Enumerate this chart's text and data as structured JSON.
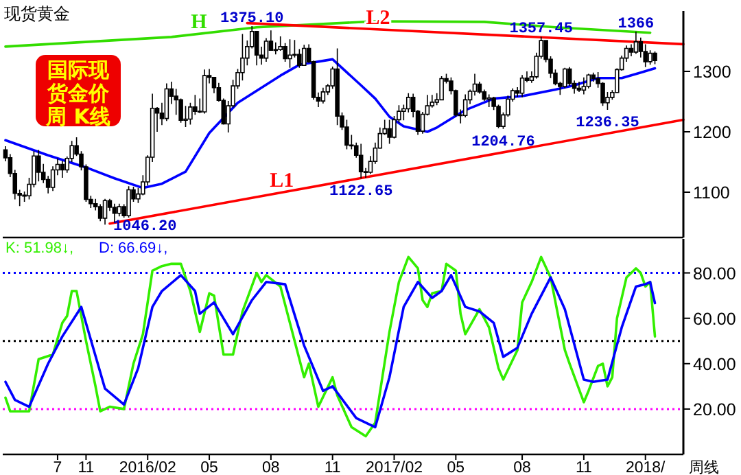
{
  "chart_data": [
    {
      "type": "candlestick",
      "title": "现货黄金",
      "x": [
        "2015-07-06",
        "2015-07-13",
        "2015-07-20",
        "2015-07-27",
        "2015-08-03",
        "2015-08-10",
        "2015-08-17",
        "2015-08-24",
        "2015-08-31",
        "2015-09-07",
        "2015-09-14",
        "2015-09-21",
        "2015-09-28",
        "2015-10-05",
        "2015-10-12",
        "2015-10-19",
        "2015-10-26",
        "2015-11-02",
        "2015-11-09",
        "2015-11-16",
        "2015-11-23",
        "2015-11-30",
        "2015-12-07",
        "2015-12-14",
        "2015-12-21",
        "2015-12-28",
        "2016-01-04",
        "2016-01-11",
        "2016-01-18",
        "2016-01-25",
        "2016-02-01",
        "2016-02-08",
        "2016-02-15",
        "2016-02-22",
        "2016-02-29",
        "2016-03-07",
        "2016-03-14",
        "2016-03-21",
        "2016-03-28",
        "2016-04-04",
        "2016-04-11",
        "2016-04-18",
        "2016-04-25",
        "2016-05-02",
        "2016-05-09",
        "2016-05-16",
        "2016-05-23",
        "2016-05-30",
        "2016-06-06",
        "2016-06-13",
        "2016-06-20",
        "2016-06-27",
        "2016-07-04",
        "2016-07-11",
        "2016-07-18",
        "2016-07-25",
        "2016-08-01",
        "2016-08-08",
        "2016-08-15",
        "2016-08-22",
        "2016-08-29",
        "2016-09-05",
        "2016-09-12",
        "2016-09-19",
        "2016-09-26",
        "2016-10-03",
        "2016-10-10",
        "2016-10-17",
        "2016-10-24",
        "2016-10-31",
        "2016-11-07",
        "2016-11-14",
        "2016-11-21",
        "2016-11-28",
        "2016-12-05",
        "2016-12-12",
        "2016-12-19",
        "2016-12-26",
        "2017-01-02",
        "2017-01-09",
        "2017-01-16",
        "2017-01-23",
        "2017-01-30",
        "2017-02-06",
        "2017-02-13",
        "2017-02-20",
        "2017-02-27",
        "2017-03-06",
        "2017-03-13",
        "2017-03-20",
        "2017-03-27",
        "2017-04-03",
        "2017-04-10",
        "2017-04-17",
        "2017-04-24",
        "2017-05-01",
        "2017-05-08",
        "2017-05-15",
        "2017-05-22",
        "2017-05-29",
        "2017-06-05",
        "2017-06-12",
        "2017-06-19",
        "2017-06-26",
        "2017-07-03",
        "2017-07-10",
        "2017-07-17",
        "2017-07-24",
        "2017-07-31",
        "2017-08-07",
        "2017-08-14",
        "2017-08-21",
        "2017-08-28",
        "2017-09-04",
        "2017-09-11",
        "2017-09-18",
        "2017-09-25",
        "2017-10-02",
        "2017-10-09",
        "2017-10-16",
        "2017-10-23",
        "2017-10-30",
        "2017-11-06",
        "2017-11-13",
        "2017-11-20",
        "2017-11-27",
        "2017-12-04",
        "2017-12-11",
        "2017-12-18",
        "2017-12-25",
        "2018-01-01",
        "2018-01-08",
        "2018-01-15",
        "2018-01-22",
        "2018-01-29",
        "2018-02-05",
        "2018-02-12",
        "2018-02-19"
      ],
      "ohlc": [
        [
          1170,
          1176,
          1151,
          1157
        ],
        [
          1157,
          1163,
          1125,
          1131
        ],
        [
          1131,
          1137,
          1088,
          1098
        ],
        [
          1098,
          1104,
          1077,
          1095
        ],
        [
          1095,
          1101,
          1084,
          1094
        ],
        [
          1094,
          1124,
          1088,
          1113
        ],
        [
          1113,
          1168,
          1108,
          1160
        ],
        [
          1160,
          1170,
          1118,
          1133
        ],
        [
          1133,
          1147,
          1115,
          1121
        ],
        [
          1121,
          1127,
          1098,
          1108
        ],
        [
          1108,
          1143,
          1102,
          1137
        ],
        [
          1137,
          1156,
          1128,
          1146
        ],
        [
          1146,
          1152,
          1124,
          1137
        ],
        [
          1137,
          1159,
          1132,
          1156
        ],
        [
          1156,
          1185,
          1150,
          1177
        ],
        [
          1177,
          1191,
          1160,
          1163
        ],
        [
          1163,
          1168,
          1136,
          1142
        ],
        [
          1142,
          1146,
          1084,
          1088
        ],
        [
          1088,
          1094,
          1074,
          1081
        ],
        [
          1081,
          1089,
          1070,
          1076
        ],
        [
          1076,
          1080,
          1052,
          1057
        ],
        [
          1057,
          1089,
          1046.2,
          1086
        ],
        [
          1086,
          1089,
          1069,
          1075
        ],
        [
          1075,
          1081,
          1049,
          1065
        ],
        [
          1065,
          1081,
          1060,
          1076
        ],
        [
          1076,
          1080,
          1058,
          1061
        ],
        [
          1061,
          1110,
          1058,
          1104
        ],
        [
          1104,
          1109,
          1084,
          1089
        ],
        [
          1089,
          1107,
          1082,
          1097
        ],
        [
          1097,
          1128,
          1095,
          1117
        ],
        [
          1117,
          1161,
          1111,
          1158
        ],
        [
          1158,
          1263,
          1150,
          1239
        ],
        [
          1239,
          1241,
          1200,
          1231
        ],
        [
          1231,
          1248,
          1211,
          1222
        ],
        [
          1222,
          1280,
          1218,
          1271
        ],
        [
          1271,
          1283,
          1246,
          1259
        ],
        [
          1259,
          1271,
          1228,
          1253
        ],
        [
          1253,
          1255,
          1215,
          1219
        ],
        [
          1219,
          1243,
          1208,
          1221
        ],
        [
          1221,
          1248,
          1212,
          1241
        ],
        [
          1241,
          1261,
          1228,
          1234
        ],
        [
          1234,
          1255,
          1231,
          1233
        ],
        [
          1233,
          1303,
          1230,
          1293
        ],
        [
          1293,
          1304,
          1280,
          1290
        ],
        [
          1290,
          1290,
          1264,
          1273
        ],
        [
          1273,
          1281,
          1250,
          1252
        ],
        [
          1252,
          1255,
          1212,
          1213
        ],
        [
          1213,
          1251,
          1199,
          1243
        ],
        [
          1243,
          1286,
          1240,
          1276
        ],
        [
          1276,
          1304,
          1271,
          1298
        ],
        [
          1298,
          1362,
          1285,
          1322
        ],
        [
          1322,
          1351,
          1310,
          1341
        ],
        [
          1341,
          1375.1,
          1338,
          1366
        ],
        [
          1366,
          1367,
          1310,
          1327
        ],
        [
          1327,
          1341,
          1311,
          1322
        ],
        [
          1322,
          1355,
          1316,
          1350
        ],
        [
          1350,
          1368,
          1334,
          1335
        ],
        [
          1335,
          1348,
          1328,
          1336
        ],
        [
          1336,
          1358,
          1334,
          1341
        ],
        [
          1341,
          1347,
          1316,
          1321
        ],
        [
          1321,
          1353,
          1306,
          1327
        ],
        [
          1327,
          1352,
          1323,
          1328
        ],
        [
          1328,
          1337,
          1306,
          1310
        ],
        [
          1310,
          1344,
          1309,
          1338
        ],
        [
          1338,
          1345,
          1314,
          1316
        ],
        [
          1316,
          1318,
          1253,
          1257
        ],
        [
          1257,
          1265,
          1241,
          1251
        ],
        [
          1251,
          1273,
          1247,
          1266
        ],
        [
          1266,
          1279,
          1261,
          1276
        ],
        [
          1276,
          1308,
          1271,
          1304
        ],
        [
          1304,
          1338,
          1211,
          1226
        ],
        [
          1226,
          1232,
          1203,
          1208
        ],
        [
          1208,
          1220,
          1171,
          1178
        ],
        [
          1178,
          1195,
          1171,
          1177
        ],
        [
          1177,
          1182,
          1157,
          1161
        ],
        [
          1161,
          1180,
          1122.65,
          1134
        ],
        [
          1134,
          1140,
          1124,
          1133
        ],
        [
          1133,
          1160,
          1130,
          1151
        ],
        [
          1151,
          1182,
          1147,
          1173
        ],
        [
          1173,
          1207,
          1172,
          1197
        ],
        [
          1197,
          1220,
          1195,
          1205
        ],
        [
          1205,
          1220,
          1180,
          1191
        ],
        [
          1191,
          1226,
          1189,
          1220
        ],
        [
          1220,
          1244,
          1215,
          1234
        ],
        [
          1234,
          1245,
          1219,
          1238
        ],
        [
          1238,
          1264,
          1232,
          1257
        ],
        [
          1257,
          1263,
          1224,
          1234
        ],
        [
          1234,
          1236,
          1195,
          1201
        ],
        [
          1201,
          1233,
          1197,
          1229
        ],
        [
          1229,
          1261,
          1227,
          1243
        ],
        [
          1243,
          1261,
          1240,
          1249
        ],
        [
          1249,
          1264,
          1244,
          1253
        ],
        [
          1253,
          1292,
          1252,
          1288
        ],
        [
          1288,
          1296,
          1280,
          1284
        ],
        [
          1284,
          1290,
          1262,
          1268
        ],
        [
          1268,
          1270,
          1225,
          1228
        ],
        [
          1228,
          1237,
          1214,
          1227
        ],
        [
          1227,
          1262,
          1224,
          1253
        ],
        [
          1253,
          1270,
          1246,
          1267
        ],
        [
          1267,
          1296,
          1260,
          1279
        ],
        [
          1279,
          1283,
          1263,
          1266
        ],
        [
          1266,
          1270,
          1251,
          1254
        ],
        [
          1254,
          1262,
          1241,
          1256
        ],
        [
          1256,
          1258,
          1236,
          1242
        ],
        [
          1242,
          1245,
          1206,
          1209
        ],
        [
          1209,
          1232,
          1204.76,
          1228
        ],
        [
          1228,
          1260,
          1225,
          1254
        ],
        [
          1254,
          1272,
          1250,
          1268
        ],
        [
          1268,
          1274,
          1258,
          1264
        ],
        [
          1264,
          1294,
          1257,
          1289
        ],
        [
          1289,
          1300,
          1282,
          1285
        ],
        [
          1285,
          1300,
          1281,
          1291
        ],
        [
          1291,
          1331,
          1288,
          1325
        ],
        [
          1325,
          1357.45,
          1321,
          1351
        ],
        [
          1351,
          1352,
          1315,
          1320
        ],
        [
          1320,
          1325,
          1289,
          1297
        ],
        [
          1297,
          1303,
          1277,
          1280
        ],
        [
          1280,
          1283,
          1261,
          1275
        ],
        [
          1275,
          1306,
          1272,
          1304
        ],
        [
          1304,
          1307,
          1276,
          1280
        ],
        [
          1280,
          1285,
          1263,
          1272
        ],
        [
          1272,
          1283,
          1266,
          1269
        ],
        [
          1269,
          1290,
          1262,
          1275
        ],
        [
          1275,
          1296,
          1272,
          1294
        ],
        [
          1294,
          1298,
          1283,
          1288
        ],
        [
          1288,
          1299,
          1273,
          1280
        ],
        [
          1280,
          1282,
          1243,
          1248
        ],
        [
          1248,
          1266,
          1236.35,
          1257
        ],
        [
          1257,
          1269,
          1253,
          1265
        ],
        [
          1265,
          1305,
          1265,
          1303
        ],
        [
          1303,
          1326,
          1301,
          1322
        ],
        [
          1322,
          1343,
          1316,
          1338
        ],
        [
          1338,
          1345,
          1325,
          1332
        ],
        [
          1332,
          1366,
          1329,
          1349
        ],
        [
          1349,
          1356,
          1323,
          1333
        ],
        [
          1333,
          1345,
          1307,
          1316
        ],
        [
          1316,
          1335,
          1311,
          1330
        ],
        [
          1330,
          1333,
          1312,
          1318
        ]
      ],
      "color": "#000000",
      "xlim": [
        "2015-07-02",
        "2018-04-02"
      ],
      "ylim": [
        1025,
        1400
      ],
      "yticks": [
        1100,
        1200,
        1300
      ],
      "tick_labels": "y",
      "series": [
        {
          "type": "line",
          "color": "#0000ff",
          "x": [
            "2015-07-06",
            "2015-09-07",
            "2015-11-02",
            "2015-12-14",
            "2016-01-25",
            "2016-02-22",
            "2016-03-28",
            "2016-05-02",
            "2016-06-13",
            "2016-08-15",
            "2016-09-12",
            "2016-10-31",
            "2016-12-12",
            "2017-01-02",
            "2017-01-23",
            "2017-02-13",
            "2017-03-20",
            "2017-04-03",
            "2017-05-15",
            "2017-06-26",
            "2017-08-07",
            "2017-09-25",
            "2017-10-23",
            "2017-11-27",
            "2018-01-01",
            "2018-01-29",
            "2018-02-19"
          ],
          "values": [
            1186,
            1161,
            1141,
            1123,
            1107,
            1114,
            1134,
            1198,
            1248,
            1293,
            1311,
            1320,
            1277,
            1255,
            1225,
            1209,
            1200,
            1207,
            1236,
            1255,
            1259,
            1270,
            1277,
            1289,
            1289,
            1298,
            1305
          ]
        },
        {
          "type": "line",
          "name": "H",
          "color": "#33dd00",
          "x": [
            "2015-07-06",
            "2016-03-07",
            "2016-07-11",
            "2017-01-02",
            "2017-06-12",
            "2017-09-25",
            "2018-02-12"
          ],
          "values": [
            1341,
            1357,
            1373,
            1383,
            1382,
            1373,
            1364
          ]
        },
        {
          "type": "line",
          "name": "L1",
          "color": "#ff0000",
          "x": [
            "2015-12-07",
            "2018-04-02"
          ],
          "values": [
            1048,
            1220
          ]
        },
        {
          "type": "line",
          "name": "L2",
          "color": "#ff0000",
          "x": [
            "2016-06-27",
            "2018-04-02"
          ],
          "values": [
            1380,
            1345
          ]
        }
      ],
      "annotations": [
        "国际现货金价周 K线",
        {
          "text": "1375.10",
          "x": "2016-07-04",
          "y": 1375.1
        },
        {
          "text": "1046.20",
          "x": "2015-11-30",
          "y": 1046.2
        },
        {
          "text": "1122.65",
          "x": "2016-12-12",
          "y": 1122.65
        },
        {
          "text": "1204.76",
          "x": "2017-07-10",
          "y": 1204.76
        },
        {
          "text": "1357.45",
          "x": "2017-09-04",
          "y": 1357.45
        },
        {
          "text": "1236.35",
          "x": "2017-12-11",
          "y": 1236.35
        },
        {
          "text": "1366",
          "x": "2018-01-22",
          "y": 1366
        }
      ]
    },
    {
      "type": "line",
      "xlabel": "周线",
      "xlim": [
        "2015-07-02",
        "2018-04-02"
      ],
      "xticks": [
        {
          "value": "2015-09-21",
          "label": "7"
        },
        {
          "value": "2015-11-02",
          "label": "11"
        },
        {
          "value": "2016-02-01",
          "label": "2016/02"
        },
        {
          "value": "2016-05-02",
          "label": "05"
        },
        {
          "value": "2016-08-01",
          "label": "08"
        },
        {
          "value": "2016-10-31",
          "label": "11"
        },
        {
          "value": "2017-01-30",
          "label": "2017/02"
        },
        {
          "value": "2017-05-01",
          "label": "05"
        },
        {
          "value": "2017-08-07",
          "label": "08"
        },
        {
          "value": "2017-11-06",
          "label": "11"
        },
        {
          "value": "2018-02-05",
          "label": "2018/"
        }
      ],
      "ylim": [
        0,
        95
      ],
      "yticks": [
        {
          "value": 20,
          "label": "20.00"
        },
        {
          "value": 40,
          "label": "40.00"
        },
        {
          "value": 60,
          "label": "60.00"
        },
        {
          "value": 80,
          "label": "80.00"
        }
      ],
      "series": [
        {
          "name": "K: 51.98↓,",
          "color": "#33ee00",
          "x": [
            "2015-07-06",
            "2015-07-13",
            "2015-08-10",
            "2015-08-24",
            "2015-09-14",
            "2015-09-28",
            "2015-10-05",
            "2015-10-12",
            "2015-10-19",
            "2015-11-02",
            "2015-11-16",
            "2015-11-23",
            "2015-12-07",
            "2015-12-28",
            "2016-01-11",
            "2016-01-25",
            "2016-02-08",
            "2016-02-22",
            "2016-03-07",
            "2016-03-21",
            "2016-04-04",
            "2016-04-18",
            "2016-05-02",
            "2016-05-09",
            "2016-05-23",
            "2016-06-06",
            "2016-06-20",
            "2016-07-11",
            "2016-07-18",
            "2016-07-25",
            "2016-08-15",
            "2016-09-05",
            "2016-09-19",
            "2016-09-26",
            "2016-10-10",
            "2016-10-31",
            "2016-11-07",
            "2016-11-28",
            "2016-12-19",
            "2017-01-02",
            "2017-01-23",
            "2017-02-06",
            "2017-02-20",
            "2017-03-06",
            "2017-03-13",
            "2017-03-20",
            "2017-03-27",
            "2017-04-10",
            "2017-04-17",
            "2017-05-01",
            "2017-05-08",
            "2017-05-15",
            "2017-06-05",
            "2017-06-19",
            "2017-07-03",
            "2017-07-10",
            "2017-07-31",
            "2017-08-07",
            "2017-08-21",
            "2017-09-04",
            "2017-09-18",
            "2017-10-09",
            "2017-10-16",
            "2017-11-06",
            "2017-11-13",
            "2017-11-27",
            "2017-12-04",
            "2017-12-11",
            "2017-12-18",
            "2017-12-25",
            "2018-01-08",
            "2018-01-22",
            "2018-01-29",
            "2018-02-05",
            "2018-02-12",
            "2018-02-19"
          ],
          "values": [
            25,
            19,
            19,
            42,
            44,
            58,
            61,
            72,
            72,
            50,
            30,
            19,
            21,
            20,
            40,
            53,
            81,
            83,
            84,
            84,
            72,
            54,
            71,
            70,
            44,
            44,
            63,
            80,
            76,
            79,
            74,
            50,
            34,
            40,
            21,
            34,
            26,
            12,
            8,
            14,
            54,
            76,
            87,
            82,
            68,
            65,
            71,
            72,
            84,
            81,
            62,
            53,
            64,
            56,
            38,
            33,
            46,
            67,
            76,
            87,
            78,
            46,
            40,
            23,
            28,
            39,
            40,
            30,
            34,
            60,
            78,
            82,
            80,
            74,
            76,
            51.98
          ]
        },
        {
          "name": "D: 66.69↓,",
          "color": "#0000ff",
          "x": [
            "2015-07-06",
            "2015-07-20",
            "2015-08-10",
            "2015-09-07",
            "2015-09-28",
            "2015-10-26",
            "2015-11-30",
            "2015-12-28",
            "2016-01-18",
            "2016-02-08",
            "2016-02-22",
            "2016-03-21",
            "2016-04-11",
            "2016-04-18",
            "2016-05-09",
            "2016-06-06",
            "2016-07-04",
            "2016-07-25",
            "2016-08-22",
            "2016-09-19",
            "2016-10-17",
            "2016-10-31",
            "2016-12-05",
            "2017-01-02",
            "2017-01-23",
            "2017-02-13",
            "2017-03-06",
            "2017-03-27",
            "2017-04-10",
            "2017-04-24",
            "2017-05-15",
            "2017-06-05",
            "2017-06-26",
            "2017-07-10",
            "2017-07-31",
            "2017-08-21",
            "2017-09-18",
            "2017-10-09",
            "2017-11-06",
            "2017-11-20",
            "2017-12-11",
            "2018-01-01",
            "2018-01-22",
            "2018-02-05",
            "2018-02-12",
            "2018-02-19"
          ],
          "values": [
            32,
            24,
            21,
            40,
            52,
            65,
            29,
            22,
            38,
            65,
            72,
            79,
            72,
            62,
            67,
            53,
            68,
            76,
            75,
            48,
            28,
            30,
            16,
            12,
            34,
            65,
            76,
            69,
            72,
            79,
            65,
            63,
            58,
            43,
            47,
            62,
            78,
            64,
            33,
            32,
            33,
            56,
            74,
            75,
            76,
            66.69
          ]
        }
      ],
      "ref_lines": [
        {
          "axis": "y",
          "value": 80,
          "color": "#0000ff",
          "line_style": "dotted"
        },
        {
          "axis": "y",
          "value": 50,
          "color": "#000000",
          "line_style": "dotted"
        },
        {
          "axis": "y",
          "value": 20,
          "color": "#ff00ff",
          "line_style": "dotted"
        }
      ]
    }
  ]
}
